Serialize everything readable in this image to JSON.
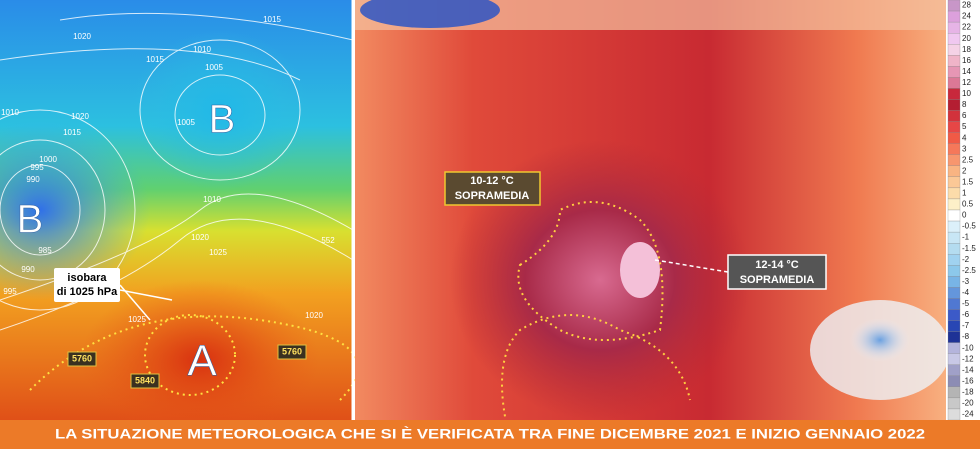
{
  "left_map": {
    "pressure_centers": [
      "B",
      "B",
      "A"
    ],
    "callout": {
      "line1": "isobara",
      "line2": "di 1025 hPa"
    },
    "isobar_labels": [
      1020,
      1015,
      1010,
      1005,
      1015,
      1010,
      1020,
      1015,
      1005,
      1000,
      995,
      990,
      985,
      990,
      995,
      1010,
      1020,
      1025,
      1025,
      1020,
      552
    ],
    "geopotential_labels": [
      5760,
      5840,
      5760
    ]
  },
  "right_map": {
    "box1": {
      "line1": "10-12 °C",
      "line2": "SOPRAMEDIA"
    },
    "box2": {
      "line1": "12-14 °C",
      "line2": "SOPRAMEDIA"
    }
  },
  "colorbar": {
    "labels": [
      28,
      24,
      22,
      20,
      18,
      16,
      14,
      12,
      10,
      8,
      6,
      5,
      4,
      3,
      2.5,
      2,
      1.5,
      1,
      0.5,
      0,
      -0.5,
      -1,
      -1.5,
      -2,
      -2.5,
      -3,
      -4,
      -5,
      -6,
      -7,
      -8,
      -10,
      -12,
      -14,
      -16,
      -18,
      -20,
      -24
    ],
    "colors": [
      "#c896c8",
      "#dca0dc",
      "#e6b4e6",
      "#f0c8f0",
      "#f5d2e6",
      "#f0b4c8",
      "#e696b4",
      "#dc7896",
      "#c8283c",
      "#b41e32",
      "#d2323c",
      "#e64646",
      "#f05a46",
      "#f5785a",
      "#f7966e",
      "#f9b482",
      "#fbc896",
      "#fcdcaa",
      "#fdf0c8",
      "#ffffff",
      "#dcf0fa",
      "#c8e6f5",
      "#b4dcf0",
      "#a0d2f0",
      "#8cc8eb",
      "#78b4e6",
      "#6496dc",
      "#5078d2",
      "#3c5ac8",
      "#2846b4",
      "#1e3296",
      "#b4b4dc",
      "#c8c8e6",
      "#a0a0c8",
      "#8c8cb4",
      "#b4b4b4",
      "#c8c8c8",
      "#dcdcdc"
    ]
  },
  "footer": {
    "text": "LA SITUAZIONE METEOROLOGICA CHE SI È VERIFICATA TRA FINE DICEMBRE 2021 E INIZIO GENNAIO 2022"
  }
}
